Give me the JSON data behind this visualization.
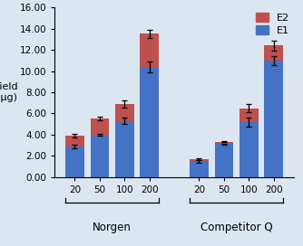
{
  "groups": [
    "Norgen",
    "Competitor Q"
  ],
  "volumes": [
    20,
    50,
    100,
    200
  ],
  "e1_values": {
    "Norgen": [
      2.9,
      4.0,
      5.3,
      10.4
    ],
    "Competitor Q": [
      1.5,
      3.1,
      5.2,
      11.0
    ]
  },
  "e2_values": {
    "Norgen": [
      1.0,
      1.5,
      1.6,
      3.1
    ],
    "Competitor Q": [
      0.2,
      0.25,
      1.3,
      1.4
    ]
  },
  "e1_errors": {
    "Norgen": [
      0.15,
      0.12,
      0.3,
      0.5
    ],
    "Competitor Q": [
      0.12,
      0.08,
      0.4,
      0.45
    ]
  },
  "total_errors": {
    "Norgen": [
      0.15,
      0.18,
      0.35,
      0.4
    ],
    "Competitor Q": [
      0.1,
      0.08,
      0.35,
      0.45
    ]
  },
  "e1_color": "#4472C4",
  "e2_color": "#C0504D",
  "bar_width": 0.75,
  "ylim": [
    0,
    16.0
  ],
  "yticks": [
    0.0,
    2.0,
    4.0,
    6.0,
    8.0,
    10.0,
    12.0,
    14.0,
    16.0
  ],
  "ylabel_line1": "Yield",
  "ylabel_line2": "(μg)",
  "group_labels": [
    "Norgen",
    "Competitor Q"
  ],
  "background_color": "#DCE6F1",
  "plot_bg_color": "#DCE6F1",
  "group_label_fontsize": 8.5,
  "tick_fontsize": 7.5,
  "ylabel_fontsize": 8,
  "legend_fontsize": 8
}
